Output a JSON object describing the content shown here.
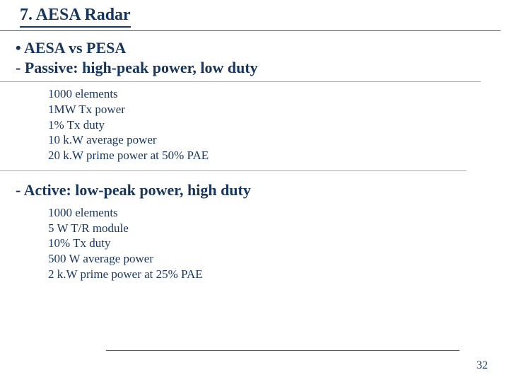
{
  "title": "7. AESA Radar",
  "section1": {
    "bullet": "• AESA vs PESA",
    "passive_head": "- Passive: high-peak power, low duty",
    "passive_items": [
      "1000 elements",
      "1MW Tx power",
      "1% Tx duty",
      "10 k.W average power",
      "20 k.W prime power at 50% PAE"
    ]
  },
  "section2": {
    "active_head": "- Active: low-peak power, high duty",
    "active_items": [
      "1000 elements",
      "5 W T/R module",
      "10% Tx duty",
      "500 W average power",
      "2 k.W prime power at 25% PAE"
    ]
  },
  "page_number": "32",
  "colors": {
    "text": "#17365d",
    "rule": "#5a5a5a",
    "footer_rule": "#8a4a4a",
    "background": "#ffffff"
  }
}
